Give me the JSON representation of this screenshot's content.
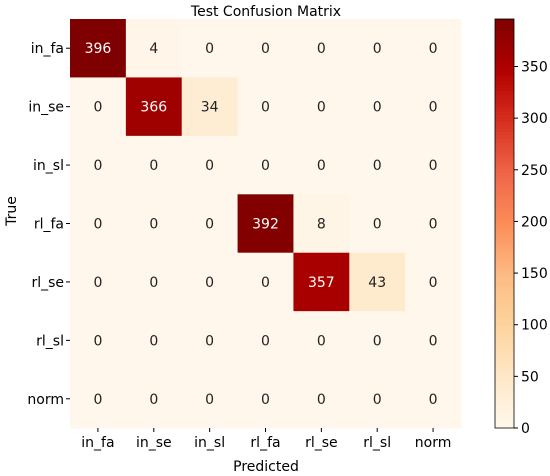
{
  "chart_data": {
    "type": "heatmap",
    "title": "Test Confusion Matrix",
    "xlabel": "Predicted",
    "ylabel": "True",
    "x_categories": [
      "in_fa",
      "in_se",
      "in_sl",
      "rl_fa",
      "rl_se",
      "rl_sl",
      "norm"
    ],
    "y_categories": [
      "in_fa",
      "in_se",
      "in_sl",
      "rl_fa",
      "rl_se",
      "rl_sl",
      "norm"
    ],
    "values": [
      [
        396,
        4,
        0,
        0,
        0,
        0,
        0
      ],
      [
        0,
        366,
        34,
        0,
        0,
        0,
        0
      ],
      [
        0,
        0,
        0,
        0,
        0,
        0,
        0
      ],
      [
        0,
        0,
        0,
        392,
        8,
        0,
        0
      ],
      [
        0,
        0,
        0,
        0,
        357,
        43,
        0
      ],
      [
        0,
        0,
        0,
        0,
        0,
        0,
        0
      ],
      [
        0,
        0,
        0,
        0,
        0,
        0,
        0
      ]
    ],
    "colormap": "OrRd",
    "colorbar": {
      "range": [
        0,
        396
      ],
      "ticks": [
        0,
        50,
        100,
        150,
        200,
        250,
        300,
        350
      ],
      "tick_labels": [
        "0",
        "50",
        "100",
        "150",
        "200",
        "250",
        "300",
        "350"
      ]
    }
  }
}
